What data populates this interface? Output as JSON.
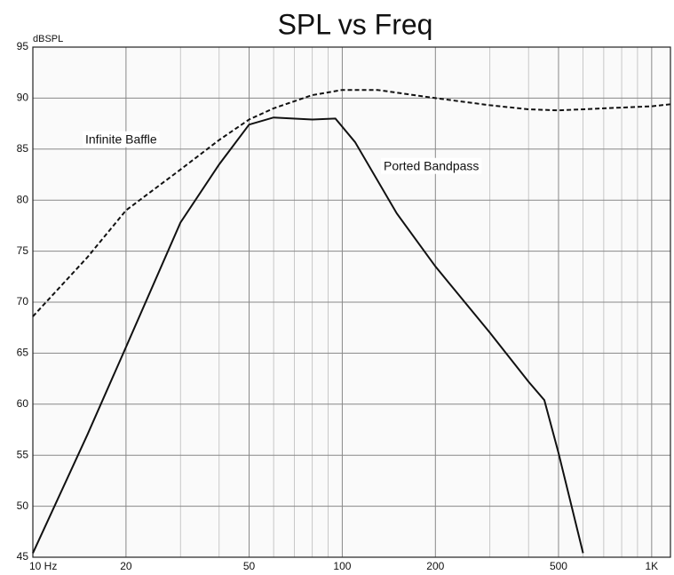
{
  "chart_data": {
    "type": "line",
    "title": "SPL vs Freq",
    "ylabel": "dBSPL",
    "xscale": "log",
    "grid": true,
    "xlim": [
      10,
      1150
    ],
    "ylim": [
      45,
      95
    ],
    "xticks": [
      {
        "value": 10,
        "label": "10 Hz"
      },
      20,
      50,
      100,
      200,
      500,
      {
        "value": 1000,
        "label": "1K"
      }
    ],
    "x_minor_ticks": [
      30,
      40,
      60,
      70,
      80,
      90,
      300,
      400,
      600,
      700,
      800,
      900
    ],
    "yticks": [
      45,
      50,
      55,
      60,
      65,
      70,
      75,
      80,
      85,
      90,
      95
    ],
    "series": [
      {
        "name": "Infinite Baffle",
        "color": "#111",
        "dashed": true,
        "x": [
          10,
          15,
          20,
          30,
          40,
          50,
          60,
          80,
          100,
          130,
          200,
          300,
          400,
          500,
          700,
          1000,
          1150
        ],
        "values": [
          68.6,
          74.4,
          79,
          83,
          85.9,
          87.9,
          89,
          90.3,
          90.8,
          90.8,
          90,
          89.3,
          88.9,
          88.8,
          89,
          89.2,
          89.4
        ]
      },
      {
        "name": "Ported Bandpass",
        "color": "#111",
        "dashed": false,
        "x": [
          10,
          15,
          20,
          30,
          40,
          50,
          60,
          80,
          95,
          110,
          150,
          200,
          300,
          400,
          450,
          500,
          600
        ],
        "values": [
          45.4,
          57,
          65.6,
          77.8,
          83.5,
          87.4,
          88.1,
          87.9,
          88,
          85.7,
          78.7,
          73.5,
          67,
          62.2,
          60.4,
          55.2,
          45.4
        ]
      }
    ]
  }
}
